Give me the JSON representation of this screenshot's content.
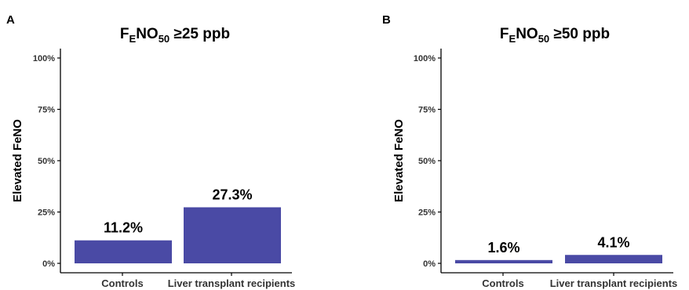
{
  "chart_data": [
    {
      "type": "bar",
      "panel": "A",
      "title_main": "F",
      "title_sub1": "E",
      "title_mid": "NO",
      "title_sub2": "50",
      "title_tail": " ≥25 ppb",
      "ylabel": "Elevated FeNO",
      "xlabel": "",
      "ylim": [
        0,
        100
      ],
      "yticks": [
        "0%",
        "25%",
        "50%",
        "75%",
        "100%"
      ],
      "categories": [
        "Controls",
        "Liver transplant recipients"
      ],
      "values": [
        11.2,
        27.3
      ],
      "labels": [
        "11.2%",
        "27.3%"
      ],
      "bar_color": "#4a4aa5",
      "grid": false
    },
    {
      "type": "bar",
      "panel": "B",
      "title_main": "F",
      "title_sub1": "E",
      "title_mid": "NO",
      "title_sub2": "50",
      "title_tail": " ≥50 ppb",
      "ylabel": "Elevated FeNO",
      "xlabel": "",
      "ylim": [
        0,
        100
      ],
      "yticks": [
        "0%",
        "25%",
        "50%",
        "75%",
        "100%"
      ],
      "categories": [
        "Controls",
        "Liver transplant recipients"
      ],
      "values": [
        1.6,
        4.1
      ],
      "labels": [
        "1.6%",
        "4.1%"
      ],
      "bar_color": "#4a4aa5",
      "grid": false
    }
  ]
}
